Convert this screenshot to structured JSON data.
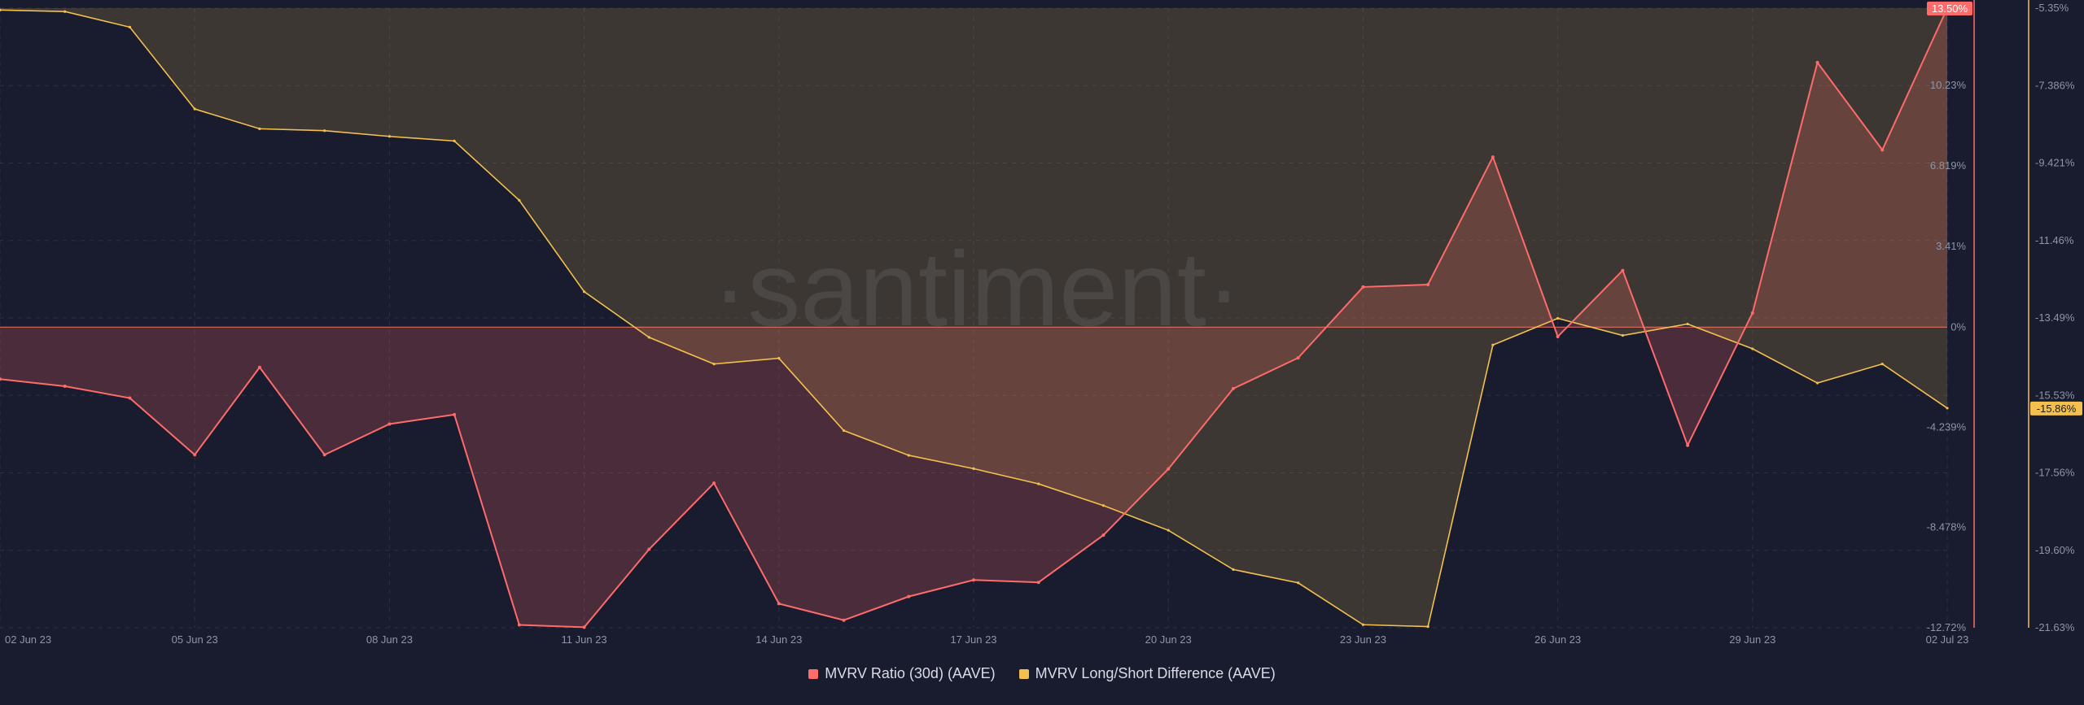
{
  "colors": {
    "background": "#181c2e",
    "mvrv": "#ff6b6b",
    "long_short": "#f3c04e",
    "grid": "#2b3046",
    "zero_line": "#ff7b6b",
    "watermark": "#2a2f44"
  },
  "watermark": "·santiment·",
  "legend": {
    "mvrv_label": "MVRV Ratio (30d) (AAVE)",
    "long_short_label": "MVRV Long/Short Difference (AAVE)"
  },
  "chart_data": {
    "type": "area",
    "x": [
      "2023-06-02",
      "2023-06-03",
      "2023-06-04",
      "2023-06-05",
      "2023-06-06",
      "2023-06-07",
      "2023-06-08",
      "2023-06-09",
      "2023-06-10",
      "2023-06-11",
      "2023-06-12",
      "2023-06-13",
      "2023-06-14",
      "2023-06-15",
      "2023-06-16",
      "2023-06-17",
      "2023-06-18",
      "2023-06-19",
      "2023-06-20",
      "2023-06-21",
      "2023-06-22",
      "2023-06-23",
      "2023-06-24",
      "2023-06-25",
      "2023-06-26",
      "2023-06-27",
      "2023-06-28",
      "2023-06-29",
      "2023-06-30",
      "2023-07-01",
      "2023-07-02"
    ],
    "x_tick_labels": [
      "02 Jun 23",
      "05 Jun 23",
      "08 Jun 23",
      "11 Jun 23",
      "14 Jun 23",
      "17 Jun 23",
      "20 Jun 23",
      "23 Jun 23",
      "26 Jun 23",
      "29 Jun 23",
      "02 Jul 23"
    ],
    "series": [
      {
        "name": "MVRV Ratio (30d) (AAVE)",
        "axis": "left",
        "values": [
          -2.2,
          -2.5,
          -3.0,
          -5.4,
          -1.7,
          -5.4,
          -4.1,
          -3.7,
          -12.6,
          -12.7,
          -9.4,
          -6.6,
          -11.7,
          -12.4,
          -11.4,
          -10.7,
          -10.8,
          -8.8,
          -6.0,
          -2.6,
          -1.3,
          1.7,
          1.8,
          7.2,
          -0.4,
          2.4,
          -5.0,
          0.6,
          11.2,
          7.5,
          13.5
        ]
      },
      {
        "name": "MVRV Long/Short Difference (AAVE)",
        "axis": "right",
        "values": [
          -5.4,
          -5.44,
          -5.85,
          -8.0,
          -8.52,
          -8.57,
          -8.72,
          -8.84,
          -10.4,
          -12.8,
          -14.0,
          -14.7,
          -14.55,
          -16.45,
          -17.1,
          -17.45,
          -17.85,
          -18.42,
          -19.07,
          -20.1,
          -20.45,
          -21.55,
          -21.6,
          -14.2,
          -13.5,
          -13.95,
          -13.65,
          -14.3,
          -15.2,
          -14.7,
          -15.86
        ]
      }
    ],
    "left_axis": {
      "ylim": [
        -12.72,
        13.5
      ],
      "tick_labels": [
        "10.23%",
        "6.819%",
        "3.41%",
        "0%",
        "-4.239%",
        "-8.478%",
        "-12.72%"
      ],
      "current_badge": "13.50%"
    },
    "right_axis": {
      "ylim": [
        -21.63,
        -5.35
      ],
      "tick_labels": [
        "-5.35%",
        "-7.386%",
        "-9.421%",
        "-11.46%",
        "-13.49%",
        "-15.53%",
        "-17.56%",
        "-19.60%",
        "-21.63%"
      ],
      "current_badge": "-15.86%"
    },
    "grid": true
  }
}
